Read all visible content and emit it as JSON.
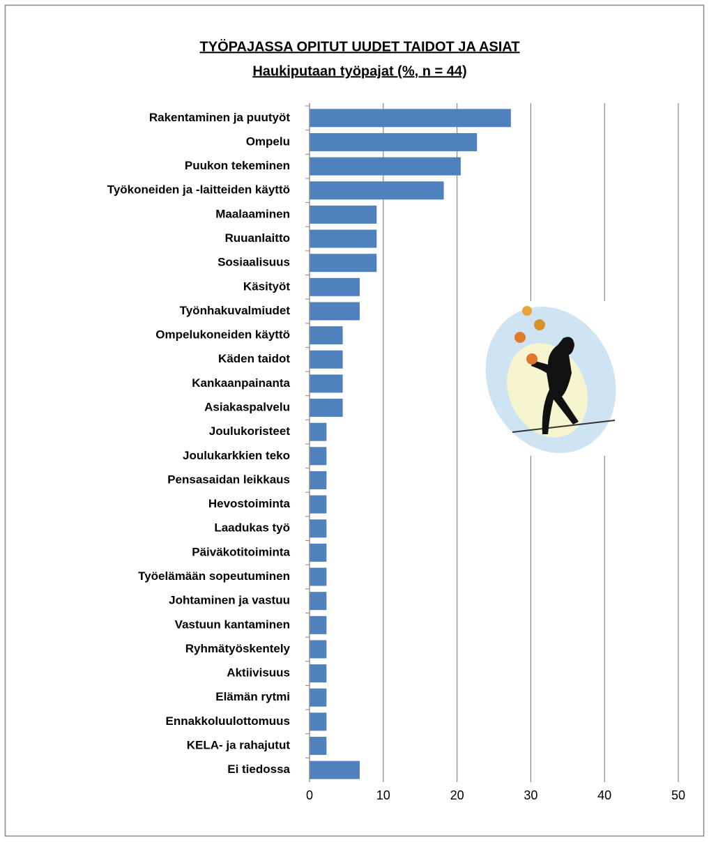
{
  "chart_data": {
    "type": "bar",
    "orientation": "horizontal",
    "title": "TYÖPAJASSA OPITUT UUDET TAIDOT JA ASIAT",
    "subtitle": "Haukiputaan työpajat  (%,  n = 44)",
    "categories": [
      "Rakentaminen ja puutyöt",
      "Ompelu",
      "Puukon tekeminen",
      "Työkoneiden ja -laitteiden käyttö",
      "Maalaaminen",
      "Ruuanlaitto",
      "Sosiaalisuus",
      "Käsityöt",
      "Työnhakuvalmiudet",
      "Ompelukoneiden käyttö",
      "Käden taidot",
      "Kankaanpainanta",
      "Asiakaspalvelu",
      "Joulukoristeet",
      "Joulukarkkien teko",
      "Pensasaidan leikkaus",
      "Hevostoiminta",
      "Laadukas työ",
      "Päiväkotitoiminta",
      "Työelämään sopeutuminen",
      "Johtaminen ja vastuu",
      "Vastuun kantaminen",
      "Ryhmätyöskentely",
      "Aktiivisuus",
      "Elämän rytmi",
      "Ennakkoluulottomuus",
      "KELA- ja rahajutut",
      "Ei tiedossa"
    ],
    "values": [
      27.3,
      22.7,
      20.5,
      18.2,
      9.1,
      9.1,
      9.1,
      6.8,
      6.8,
      4.5,
      4.5,
      4.5,
      4.5,
      2.3,
      2.3,
      2.3,
      2.3,
      2.3,
      2.3,
      2.3,
      2.3,
      2.3,
      2.3,
      2.3,
      2.3,
      2.3,
      2.3,
      6.8
    ],
    "color": "#4f81bd",
    "xlim": [
      0,
      50
    ],
    "xticks": [
      0,
      10,
      20,
      30,
      40,
      50
    ],
    "grid": true
  }
}
